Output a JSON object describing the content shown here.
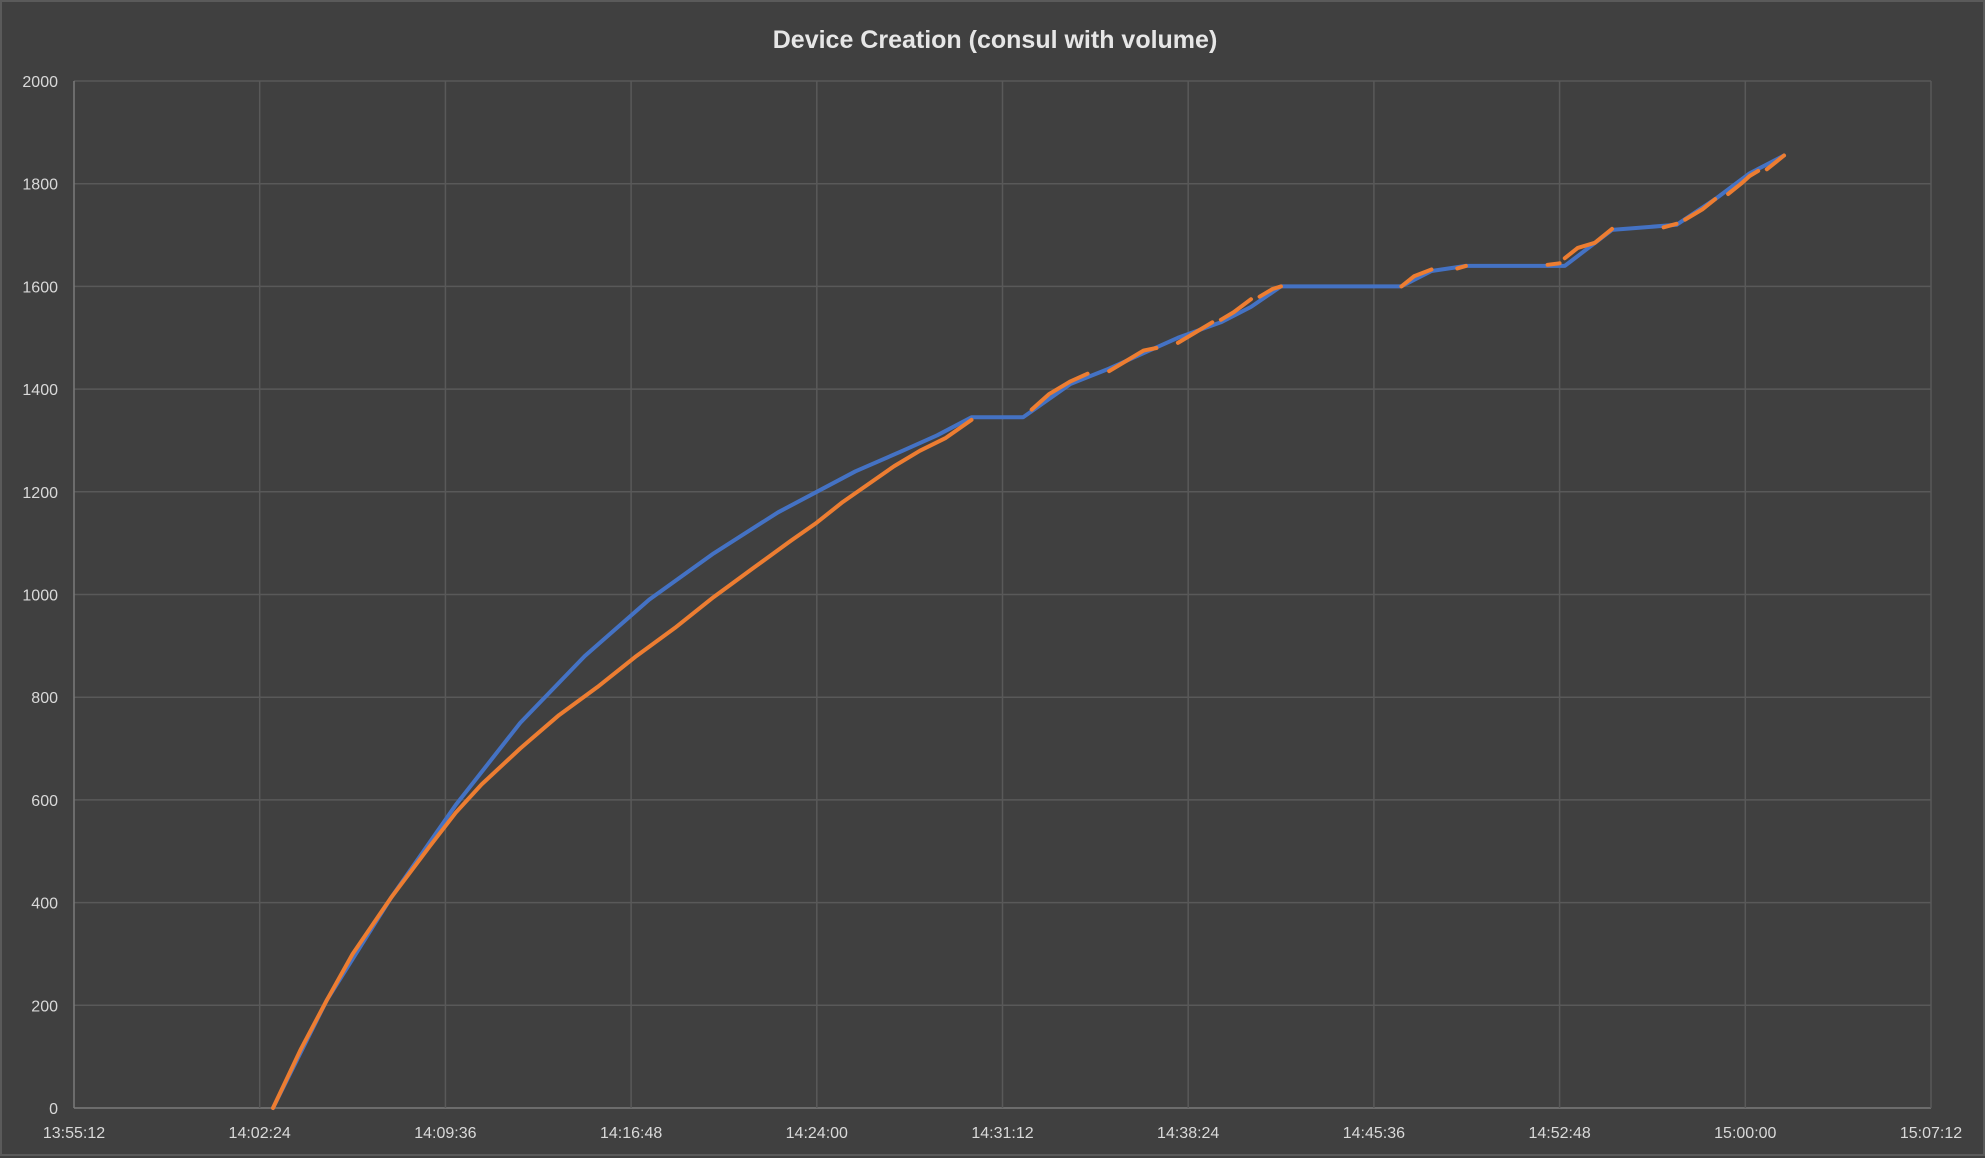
{
  "chart_data": {
    "type": "line",
    "title": "Device Creation (consul with volume)",
    "xlabel": "",
    "ylabel": "",
    "x_axis_type": "time",
    "xlim": [
      "13:55:12",
      "15:07:12"
    ],
    "ylim": [
      0,
      2000
    ],
    "grid": true,
    "legend": "none",
    "x_ticks": [
      "13:55:12",
      "14:02:24",
      "14:09:36",
      "14:16:48",
      "14:24:00",
      "14:31:12",
      "14:38:24",
      "14:45:36",
      "14:52:48",
      "15:00:00",
      "15:07:12"
    ],
    "y_ticks": [
      "0",
      "200",
      "400",
      "600",
      "800",
      "1000",
      "1200",
      "1400",
      "1600",
      "1800",
      "2000"
    ],
    "series": [
      {
        "color": "#4472C4",
        "x": [
          "14:02:55",
          "14:05:00",
          "14:07:30",
          "14:10:00",
          "14:12:30",
          "14:15:00",
          "14:17:30",
          "14:20:00",
          "14:22:30",
          "14:24:00",
          "14:25:30",
          "14:27:20",
          "14:28:40",
          "14:30:00",
          "14:32:00",
          "14:33:50",
          "14:35:20",
          "14:36:40",
          "14:38:00",
          "14:39:40",
          "14:40:50",
          "14:42:00",
          "14:46:40",
          "14:47:50",
          "14:49:10",
          "14:53:00",
          "14:54:50",
          "14:57:20",
          "14:58:50",
          "15:00:10",
          "15:01:30"
        ],
        "y": [
          0,
          210,
          410,
          590,
          750,
          880,
          990,
          1080,
          1160,
          1200,
          1240,
          1280,
          1310,
          1345,
          1345,
          1410,
          1440,
          1470,
          1500,
          1530,
          1560,
          1600,
          1600,
          1630,
          1640,
          1640,
          1710,
          1720,
          1770,
          1820,
          1855
        ]
      },
      {
        "color": "#ED7D31",
        "x": [
          "14:02:55",
          "14:04:00",
          "14:05:00",
          "14:06:00",
          "14:07:30",
          "14:09:00",
          "14:10:00",
          "14:11:00",
          "14:12:30",
          "14:14:00",
          "14:15:30",
          "14:17:00",
          "14:18:30",
          "14:20:00",
          "14:21:30",
          "14:23:00",
          "14:24:00",
          "14:25:00",
          "14:26:00",
          "14:27:00",
          "14:28:00",
          "14:29:00",
          "14:30:00"
        ],
        "y": [
          0,
          115,
          210,
          300,
          410,
          510,
          575,
          630,
          700,
          765,
          820,
          880,
          935,
          995,
          1050,
          1105,
          1140,
          1180,
          1215,
          1250,
          1280,
          1305,
          1340
        ],
        "segments": [
          [
            [
              "14:32:20",
              1360
            ],
            [
              "14:33:00",
              1390
            ],
            [
              "14:33:50",
              1415
            ],
            [
              "14:34:30",
              1430
            ]
          ],
          [
            [
              "14:35:20",
              1435
            ],
            [
              "14:36:00",
              1455
            ],
            [
              "14:36:40",
              1475
            ],
            [
              "14:37:10",
              1480
            ]
          ],
          [
            [
              "14:38:00",
              1490
            ],
            [
              "14:38:40",
              1510
            ],
            [
              "14:39:20",
              1530
            ]
          ],
          [
            [
              "14:39:40",
              1535
            ],
            [
              "14:40:10",
              1550
            ],
            [
              "14:40:50",
              1575
            ]
          ],
          [
            [
              "14:41:10",
              1580
            ],
            [
              "14:41:40",
              1595
            ],
            [
              "14:42:00",
              1600
            ]
          ],
          [
            [
              "14:46:40",
              1600
            ],
            [
              "14:47:10",
              1620
            ],
            [
              "14:47:50",
              1633
            ]
          ],
          [
            [
              "14:48:50",
              1635
            ],
            [
              "14:49:10",
              1640
            ]
          ],
          [
            [
              "14:52:20",
              1642
            ],
            [
              "14:52:48",
              1645
            ]
          ],
          [
            [
              "14:53:00",
              1655
            ],
            [
              "14:53:30",
              1675
            ],
            [
              "14:54:10",
              1685
            ],
            [
              "14:54:50",
              1712
            ]
          ],
          [
            [
              "14:56:50",
              1715
            ],
            [
              "14:57:20",
              1722
            ]
          ],
          [
            [
              "14:57:40",
              1730
            ],
            [
              "14:58:20",
              1750
            ],
            [
              "14:58:50",
              1770
            ]
          ],
          [
            [
              "14:59:20",
              1780
            ],
            [
              "14:59:50",
              1800
            ],
            [
              "15:00:10",
              1815
            ],
            [
              "15:00:30",
              1825
            ]
          ],
          [
            [
              "15:00:50",
              1828
            ],
            [
              "15:01:30",
              1855
            ]
          ]
        ]
      }
    ]
  }
}
